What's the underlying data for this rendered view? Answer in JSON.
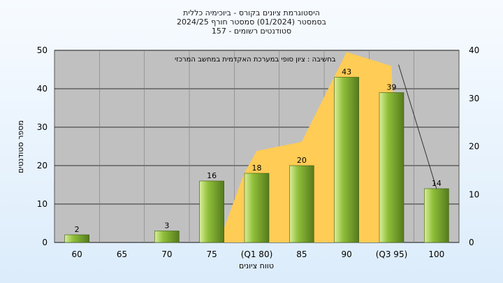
{
  "chart_data": {
    "type": "bar",
    "title_lines": [
      "היסטוגרמת ציונים בקורס - ביוכימיה כללית",
      "בסמסטר  (01/2024)  סמסטר חורף 2024/25",
      "סטודנטים רשומים - 157"
    ],
    "xlabel": "טווח ציונים",
    "ylabel": "מספר סטודנטים",
    "categories": [
      "60",
      "65",
      "70",
      "75",
      "(Q1 80)",
      "85",
      "90",
      "(Q3 95)",
      "100"
    ],
    "values": [
      2,
      0,
      3,
      16,
      18,
      20,
      43,
      39,
      14
    ],
    "data_labels": [
      "2",
      "",
      "3",
      "16",
      "18",
      "20",
      "43",
      "39",
      "14"
    ],
    "ylim": [
      0,
      50
    ],
    "yticks": [
      "0",
      "10",
      "20",
      "30",
      "40",
      "50"
    ],
    "y2lim": [
      0,
      40
    ],
    "y2ticks": [
      "0",
      "10",
      "20",
      "30",
      "40"
    ],
    "annotation": "בחשיבה : ציון סופי במערכת האקדמית במחשב המרכזי",
    "grid": true,
    "colors": {
      "plot_bg": "#c0c0c0",
      "bar_light": "#d9ef9a",
      "bar_mid": "#8fbf3a",
      "bar_dark": "#557a1c",
      "area_fill": "#ffcc55",
      "gridline": "#000000"
    }
  }
}
